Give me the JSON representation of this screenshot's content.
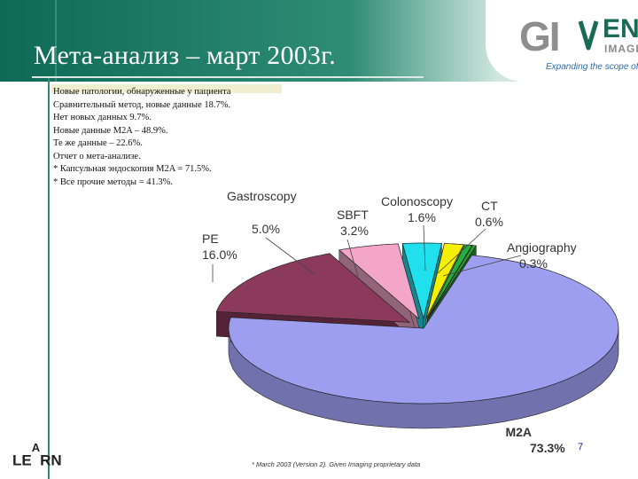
{
  "slide": {
    "title": "Мета-анализ – март 2003г.",
    "page_number": "7",
    "learn_logo": {
      "le": "LE",
      "a": "A",
      "rn": "RN"
    },
    "footnote": "* March 2003 (Version 2). Given Imaging proprietary data"
  },
  "logo": {
    "gi": "GI",
    "ven": "EN",
    "imaging": "IMAGING",
    "tagline": "Expanding the scope of GI"
  },
  "notes": [
    "Новые патологии, обнаруженные у пациента",
    "Сравнительный метод, новые данные 18.7%.",
    "Нет новых данных 9.7%.",
    "Новые данные M2A – 48.9%.",
    "Те же данные – 22.6%.",
    "Отчет о мета-анализе.",
    " * Капсульная эндоскопия M2A = 71.5%.",
    " * Все прочие методы = 41.3%."
  ],
  "chart_data": {
    "type": "pie",
    "categories": [
      "M2A",
      "PE",
      "Gastroscopy",
      "SBFT",
      "Colonoscopy",
      "CT",
      "Angiography"
    ],
    "values": [
      73.3,
      16.0,
      5.0,
      3.2,
      1.6,
      0.6,
      0.3
    ],
    "labels": [
      {
        "name": "M2A",
        "value": "73.3%"
      },
      {
        "name": "PE",
        "value": "16.0%"
      },
      {
        "name": "Gastroscopy",
        "value": "5.0%"
      },
      {
        "name": "SBFT",
        "value": "3.2%"
      },
      {
        "name": "Colonoscopy",
        "value": "1.6%"
      },
      {
        "name": "CT",
        "value": "0.6%"
      },
      {
        "name": "Angiography",
        "value": "0.3%"
      }
    ],
    "colors": {
      "M2A": "#9d9ef0",
      "PE": "#8c3a5c",
      "Gastroscopy": "#f4a6c8",
      "SBFT": "#20e0ee",
      "Colonoscopy": "#f4f000",
      "CT": "#20b040",
      "Angiography": "#30a030"
    }
  }
}
